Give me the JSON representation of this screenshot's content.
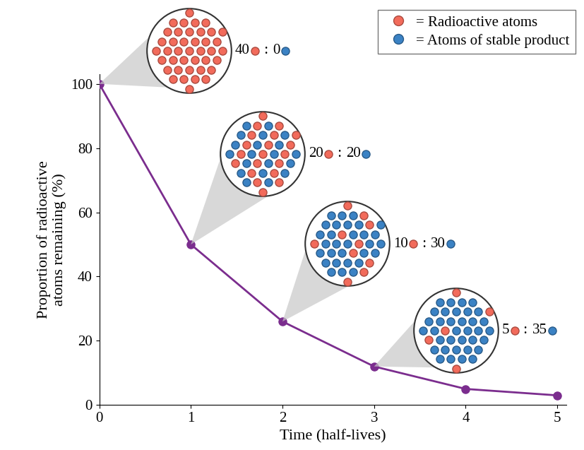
{
  "chart_data": {
    "type": "line",
    "x": [
      0,
      1,
      2,
      3,
      4,
      5
    ],
    "values": [
      100,
      50,
      26,
      12,
      5,
      3
    ],
    "color": "#7b2d8e",
    "marker": "o",
    "xlabel": "Time (half-lives)",
    "ylabel": "Proportion of radioactive\natoms remaining (%)",
    "xlim": [
      0,
      5.1
    ],
    "xticks": [
      0,
      1,
      2,
      3,
      4,
      5
    ],
    "ylim": [
      0,
      103
    ],
    "yticks": [
      0,
      20,
      40,
      60,
      80,
      100
    ],
    "legend": "upper right",
    "atom_kinds": [
      {
        "name": "= Radioactive atoms",
        "color": "#f26b5b"
      },
      {
        "name": "= Atoms of stable product",
        "color": "#3b82c4"
      }
    ],
    "separator": ":",
    "insets": [
      {
        "x": 0,
        "radioactive": 40,
        "stable": 0
      },
      {
        "x": 1,
        "radioactive": 20,
        "stable": 20
      },
      {
        "x": 2,
        "radioactive": 10,
        "stable": 30
      },
      {
        "x": 3,
        "radioactive": 5,
        "stable": 35
      }
    ]
  }
}
